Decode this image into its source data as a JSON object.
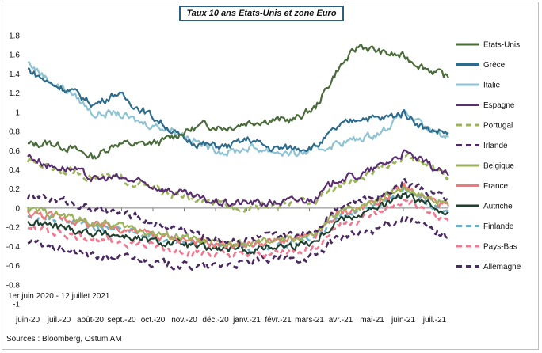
{
  "chart_data": {
    "type": "line",
    "title": "Taux 10 ans Etats-Unis et zone Euro",
    "period_note": "1er juin 2020 - 12 juillet 2021",
    "sources": "Sources : Bloomberg, Ostum AM",
    "ylim": [
      -1,
      1.8
    ],
    "yticks": [
      "1.8",
      "1.6",
      "1.4",
      "1.2",
      "1",
      "0.8",
      "0.6",
      "0.4",
      "0.2",
      "0",
      "-0.2",
      "-0.4",
      "-0.6",
      "-0.8",
      "-1"
    ],
    "ytick_values": [
      1.8,
      1.6,
      1.4,
      1.2,
      1,
      0.8,
      0.6,
      0.4,
      0.2,
      0,
      -0.2,
      -0.4,
      -0.6,
      -0.8,
      -1
    ],
    "xticks": [
      "juin-20",
      "juil.-20",
      "août-20",
      "sept.-20",
      "oct.-20",
      "nov.-20",
      "déc.-20",
      "janv.-21",
      "févr.-21",
      "mars-21",
      "avr.-21",
      "mai-21",
      "juin-21",
      "juil.-21"
    ],
    "x_month_points": [
      "juin-20",
      "juil.-20",
      "août-20",
      "sept.-20",
      "oct.-20",
      "nov.-20",
      "déc.-20",
      "janv.-21",
      "févr.-21",
      "mars-21",
      "avr.-21",
      "mai-21",
      "juin-21",
      "juil.-21",
      "juil.-21 (12)"
    ],
    "legend_position": "right",
    "grid": false,
    "series": [
      {
        "name": "Etats-Unis",
        "color": "#4a6b3a",
        "dash": false,
        "values": [
          0.66,
          0.68,
          0.62,
          0.53,
          0.68,
          0.66,
          0.69,
          0.79,
          0.87,
          0.84,
          0.9,
          0.92,
          0.92,
          1.05,
          1.45,
          1.7,
          1.62,
          1.58,
          1.46,
          1.36
        ]
      },
      {
        "name": "Grèce",
        "color": "#2e6c8c",
        "dash": false,
        "values": [
          1.45,
          1.3,
          1.22,
          1.08,
          1.2,
          1.05,
          0.9,
          0.72,
          0.66,
          0.64,
          0.72,
          0.62,
          0.63,
          0.64,
          0.84,
          0.95,
          0.93,
          1.0,
          0.82,
          0.79
        ]
      },
      {
        "name": "Italie",
        "color": "#8ec3d4",
        "dash": false,
        "values": [
          1.52,
          1.33,
          1.2,
          0.98,
          0.99,
          0.9,
          0.85,
          0.78,
          0.65,
          0.58,
          0.63,
          0.6,
          0.56,
          0.6,
          0.68,
          0.72,
          0.8,
          1.0,
          0.82,
          0.74
        ]
      },
      {
        "name": "Espagne",
        "color": "#5a2e70",
        "dash": false,
        "values": [
          0.55,
          0.44,
          0.41,
          0.3,
          0.32,
          0.27,
          0.21,
          0.15,
          0.08,
          0.05,
          0.06,
          0.05,
          0.08,
          0.1,
          0.31,
          0.34,
          0.45,
          0.58,
          0.46,
          0.34
        ]
      },
      {
        "name": "Portugal",
        "color": "#9bb35a",
        "dash": true,
        "values": [
          0.5,
          0.43,
          0.38,
          0.32,
          0.32,
          0.25,
          0.18,
          0.12,
          0.06,
          0.02,
          0.02,
          0.02,
          0.05,
          0.08,
          0.24,
          0.3,
          0.42,
          0.55,
          0.45,
          0.32
        ]
      },
      {
        "name": "Irlande",
        "color": "#4a2a60",
        "dash": true,
        "values": [
          0.12,
          0.1,
          0.06,
          -0.02,
          -0.05,
          -0.1,
          -0.18,
          -0.22,
          -0.3,
          -0.33,
          -0.33,
          -0.3,
          -0.28,
          -0.22,
          0.02,
          0.08,
          0.15,
          0.28,
          0.18,
          0.08
        ]
      },
      {
        "name": "Belgique",
        "color": "#9bb35a",
        "dash": false,
        "values": [
          -0.02,
          -0.05,
          -0.1,
          -0.16,
          -0.18,
          -0.22,
          -0.28,
          -0.3,
          -0.36,
          -0.38,
          -0.38,
          -0.34,
          -0.32,
          -0.28,
          -0.04,
          0.02,
          0.12,
          0.22,
          0.12,
          0.04
        ]
      },
      {
        "name": "France",
        "color": "#f07878",
        "dash": false,
        "values": [
          -0.05,
          -0.08,
          -0.12,
          -0.18,
          -0.2,
          -0.24,
          -0.3,
          -0.32,
          -0.37,
          -0.38,
          -0.38,
          -0.35,
          -0.33,
          -0.29,
          -0.06,
          0.0,
          0.1,
          0.22,
          0.1,
          0.02
        ]
      },
      {
        "name": "Autriche",
        "color": "#1f3f2f",
        "dash": false,
        "values": [
          -0.15,
          -0.18,
          -0.22,
          -0.26,
          -0.28,
          -0.32,
          -0.36,
          -0.38,
          -0.42,
          -0.43,
          -0.44,
          -0.4,
          -0.39,
          -0.34,
          -0.12,
          -0.06,
          0.02,
          0.14,
          0.04,
          -0.04
        ]
      },
      {
        "name": "Finlande",
        "color": "#6fb0c8",
        "dash": true,
        "values": [
          -0.08,
          -0.1,
          -0.14,
          -0.2,
          -0.22,
          -0.26,
          -0.32,
          -0.34,
          -0.4,
          -0.41,
          -0.41,
          -0.38,
          -0.36,
          -0.31,
          -0.09,
          -0.03,
          0.06,
          0.18,
          0.06,
          -0.02
        ]
      },
      {
        "name": "Pays-Bas",
        "color": "#f07890",
        "dash": true,
        "values": [
          -0.2,
          -0.24,
          -0.28,
          -0.32,
          -0.34,
          -0.38,
          -0.42,
          -0.44,
          -0.48,
          -0.49,
          -0.5,
          -0.46,
          -0.45,
          -0.4,
          -0.18,
          -0.12,
          -0.04,
          0.08,
          -0.04,
          -0.14
        ]
      },
      {
        "name": "Allemagne",
        "color": "#4a2a60",
        "dash": true,
        "values": [
          -0.35,
          -0.4,
          -0.45,
          -0.5,
          -0.52,
          -0.52,
          -0.58,
          -0.6,
          -0.62,
          -0.59,
          -0.57,
          -0.53,
          -0.54,
          -0.5,
          -0.3,
          -0.28,
          -0.2,
          -0.1,
          -0.2,
          -0.3
        ]
      }
    ]
  }
}
